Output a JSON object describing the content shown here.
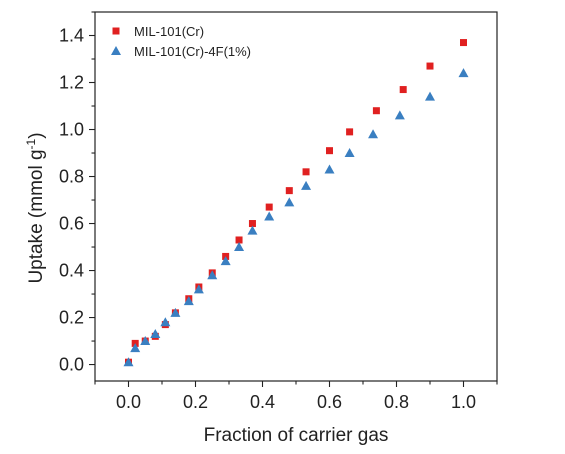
{
  "chart_data": {
    "type": "scatter",
    "xlabel": "Fraction of carrier gas",
    "ylabel": "Uptake (mmol g",
    "ylabel_sup": "-1",
    "ylabel_tail": ")",
    "xlim": [
      -0.1,
      1.1
    ],
    "ylim": [
      -0.07,
      1.5
    ],
    "xticks": [
      0.0,
      0.2,
      0.4,
      0.6,
      0.8,
      1.0
    ],
    "xtick_labels": [
      "0.0",
      "0.2",
      "0.4",
      "0.6",
      "0.8",
      "1.0"
    ],
    "yticks": [
      0.0,
      0.2,
      0.4,
      0.6,
      0.8,
      1.0,
      1.2,
      1.4
    ],
    "ytick_labels": [
      "0.0",
      "0.2",
      "0.4",
      "0.6",
      "0.8",
      "1.0",
      "1.2",
      "1.4"
    ],
    "grid": false,
    "legend_position": "top-left",
    "series": [
      {
        "name": "MIL-101(Cr)",
        "marker": "square",
        "color": "#e02020",
        "x": [
          0.0,
          0.02,
          0.05,
          0.08,
          0.11,
          0.14,
          0.18,
          0.21,
          0.25,
          0.29,
          0.33,
          0.37,
          0.42,
          0.48,
          0.53,
          0.6,
          0.66,
          0.74,
          0.82,
          0.9,
          1.0
        ],
        "y": [
          0.01,
          0.09,
          0.1,
          0.12,
          0.17,
          0.22,
          0.28,
          0.33,
          0.39,
          0.46,
          0.53,
          0.6,
          0.67,
          0.74,
          0.82,
          0.91,
          0.99,
          1.08,
          1.17,
          1.27,
          1.37
        ]
      },
      {
        "name": "MIL-101(Cr)-4F(1%)",
        "marker": "triangle",
        "color": "#3a7fc1",
        "x": [
          0.0,
          0.02,
          0.05,
          0.08,
          0.11,
          0.14,
          0.18,
          0.21,
          0.25,
          0.29,
          0.33,
          0.37,
          0.42,
          0.48,
          0.53,
          0.6,
          0.66,
          0.73,
          0.81,
          0.9,
          1.0
        ],
        "y": [
          0.01,
          0.07,
          0.1,
          0.13,
          0.18,
          0.22,
          0.27,
          0.32,
          0.38,
          0.44,
          0.5,
          0.57,
          0.63,
          0.69,
          0.76,
          0.83,
          0.9,
          0.98,
          1.06,
          1.14,
          1.24
        ]
      }
    ]
  }
}
